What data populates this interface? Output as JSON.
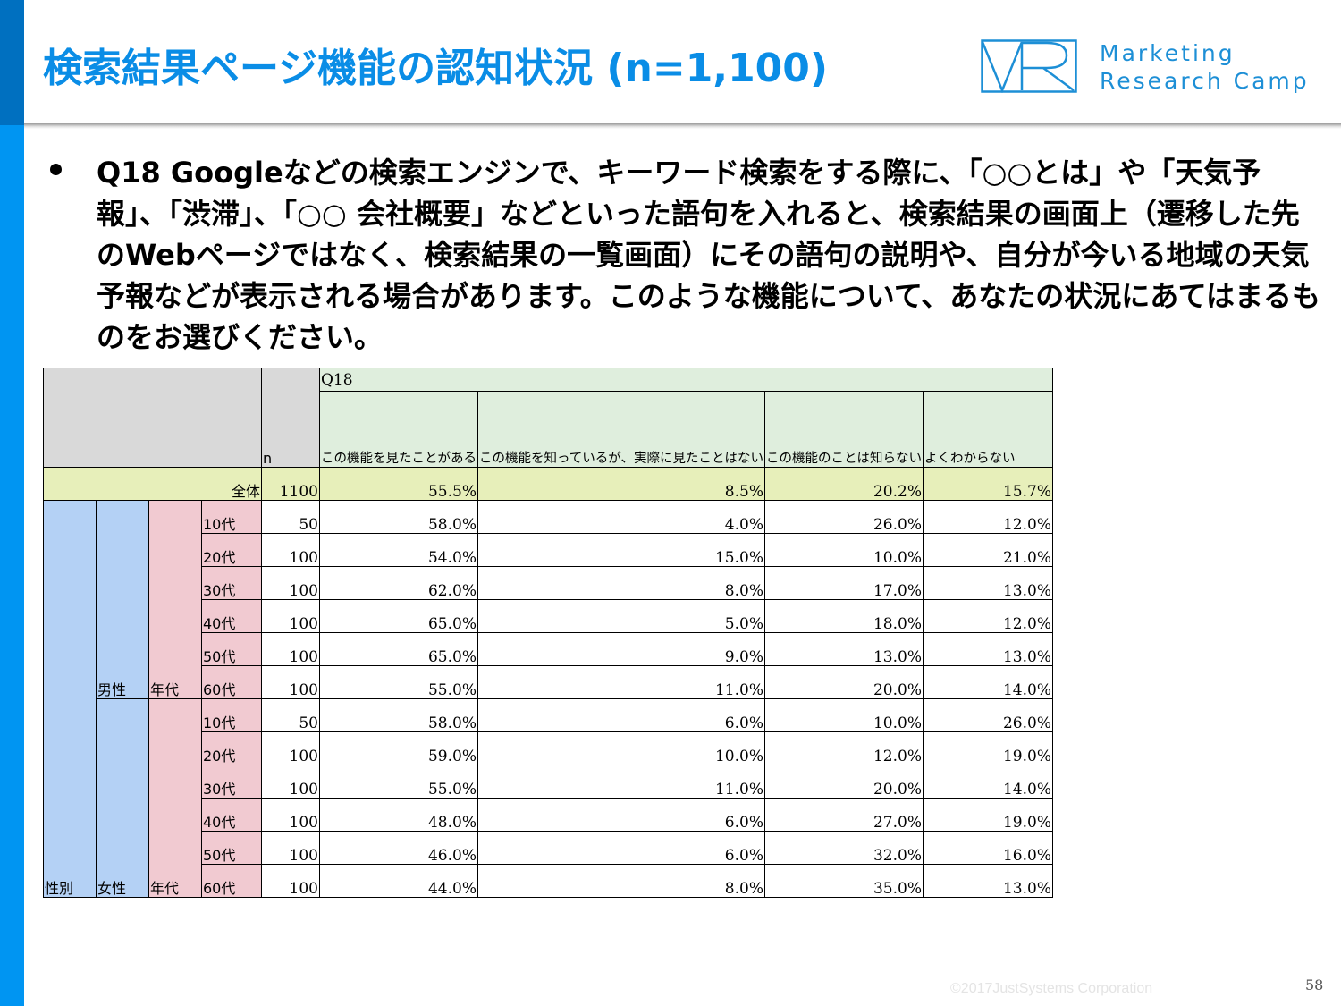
{
  "title": "検索結果ページ機能の認知状況 (n=1,100)",
  "logo": {
    "line1": "Marketing",
    "line2": "Research Camp",
    "color": "#1d8fd6"
  },
  "question": "Q18 Googleなどの検索エンジンで、キーワード検索をする際に、「○○とは」や「天気予報」、「渋滞」、「○○ 会社概要」などといった語句を入れると、検索結果の画面上（遷移した先のWebページではなく、検索結果の一覧画面）にその語句の説明や、自分が今いる地域の天気予報などが表示される場合があります。このような機能について、あなたの状況にあてはまるものをお選びください。",
  "table": {
    "header_n": "n",
    "header_q": "Q18",
    "columns": [
      "この機能を見たことがある",
      "この機能を知っているが、実際に見たことはない",
      "この機能のことは知らない",
      "よくわからない"
    ],
    "total": {
      "label": "全体",
      "n": "1100",
      "values": [
        "55.5%",
        "8.5%",
        "20.2%",
        "15.7%"
      ]
    },
    "gender_label": "性別",
    "age_label": "年代",
    "groups": [
      {
        "label": "男性",
        "rows": [
          {
            "age": "10代",
            "n": "50",
            "values": [
              "58.0%",
              "4.0%",
              "26.0%",
              "12.0%"
            ]
          },
          {
            "age": "20代",
            "n": "100",
            "values": [
              "54.0%",
              "15.0%",
              "10.0%",
              "21.0%"
            ]
          },
          {
            "age": "30代",
            "n": "100",
            "values": [
              "62.0%",
              "8.0%",
              "17.0%",
              "13.0%"
            ]
          },
          {
            "age": "40代",
            "n": "100",
            "values": [
              "65.0%",
              "5.0%",
              "18.0%",
              "12.0%"
            ]
          },
          {
            "age": "50代",
            "n": "100",
            "values": [
              "65.0%",
              "9.0%",
              "13.0%",
              "13.0%"
            ]
          },
          {
            "age": "60代",
            "n": "100",
            "values": [
              "55.0%",
              "11.0%",
              "20.0%",
              "14.0%"
            ]
          }
        ]
      },
      {
        "label": "女性",
        "rows": [
          {
            "age": "10代",
            "n": "50",
            "values": [
              "58.0%",
              "6.0%",
              "10.0%",
              "26.0%"
            ]
          },
          {
            "age": "20代",
            "n": "100",
            "values": [
              "59.0%",
              "10.0%",
              "12.0%",
              "19.0%"
            ]
          },
          {
            "age": "30代",
            "n": "100",
            "values": [
              "55.0%",
              "11.0%",
              "20.0%",
              "14.0%"
            ]
          },
          {
            "age": "40代",
            "n": "100",
            "values": [
              "48.0%",
              "6.0%",
              "27.0%",
              "19.0%"
            ]
          },
          {
            "age": "50代",
            "n": "100",
            "values": [
              "46.0%",
              "6.0%",
              "32.0%",
              "16.0%"
            ]
          },
          {
            "age": "60代",
            "n": "100",
            "values": [
              "44.0%",
              "8.0%",
              "35.0%",
              "13.0%"
            ]
          }
        ]
      }
    ]
  },
  "footer": {
    "copyright": "©2017JustSystems Corporation",
    "page": "58"
  },
  "colors": {
    "title": "#0a8de6",
    "sidebar": "#0095f2",
    "total_row": "#e7efba",
    "gender_cell": "#b4d1f5",
    "age_cell": "#f1cad1",
    "header_green": "#dfeedd",
    "header_gray": "#d9d9d9"
  }
}
